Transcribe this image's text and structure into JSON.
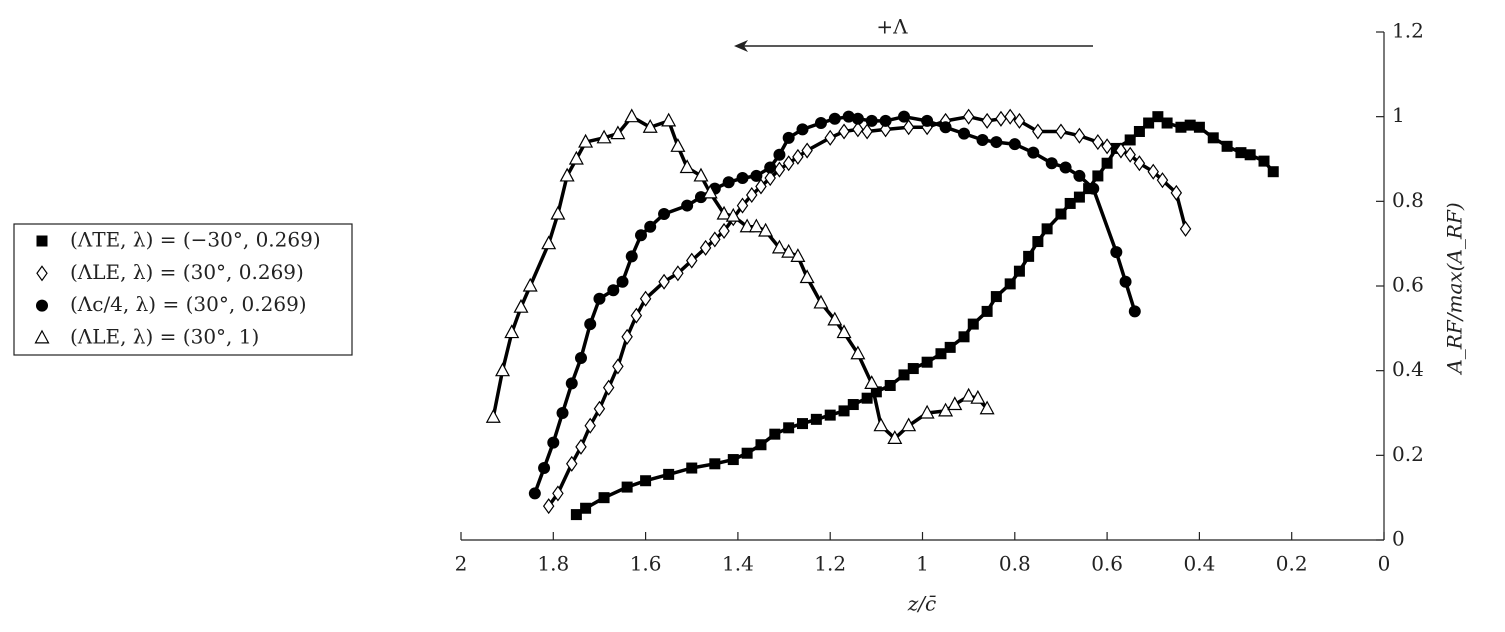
{
  "chart_data": {
    "type": "line",
    "x_label": "z/c̄",
    "y_label": "A_RF/max(A_RF)",
    "annotation": "+Λ",
    "xlim": [
      2,
      0
    ],
    "ylim": [
      0,
      1.2
    ],
    "xticks": [
      2,
      1.8,
      1.6,
      1.4,
      1.2,
      1,
      0.8,
      0.6,
      0.4,
      0.2,
      0
    ],
    "yticks": [
      0,
      0.2,
      0.4,
      0.6,
      0.8,
      1,
      1.2
    ],
    "legend": "left-outside",
    "series": [
      {
        "name": "(ΛTE, λ) = (−30°, 0.269)",
        "color": "#000000",
        "marker": "square",
        "x": [
          1.75,
          1.73,
          1.69,
          1.64,
          1.6,
          1.55,
          1.5,
          1.45,
          1.41,
          1.38,
          1.35,
          1.32,
          1.29,
          1.26,
          1.23,
          1.2,
          1.17,
          1.15,
          1.12,
          1.1,
          1.07,
          1.04,
          1.02,
          0.99,
          0.96,
          0.94,
          0.91,
          0.89,
          0.86,
          0.84,
          0.81,
          0.79,
          0.77,
          0.75,
          0.73,
          0.7,
          0.68,
          0.66,
          0.64,
          0.62,
          0.6,
          0.58,
          0.55,
          0.53,
          0.51,
          0.49,
          0.47,
          0.44,
          0.42,
          0.4,
          0.37,
          0.34,
          0.31,
          0.29,
          0.26,
          0.24
        ],
        "values": [
          0.06,
          0.075,
          0.1,
          0.125,
          0.14,
          0.155,
          0.17,
          0.18,
          0.19,
          0.205,
          0.225,
          0.25,
          0.265,
          0.275,
          0.285,
          0.295,
          0.305,
          0.32,
          0.335,
          0.35,
          0.365,
          0.39,
          0.405,
          0.42,
          0.44,
          0.455,
          0.48,
          0.51,
          0.54,
          0.575,
          0.605,
          0.635,
          0.67,
          0.705,
          0.735,
          0.77,
          0.795,
          0.81,
          0.83,
          0.86,
          0.89,
          0.925,
          0.945,
          0.965,
          0.985,
          1.0,
          0.985,
          0.975,
          0.98,
          0.975,
          0.95,
          0.93,
          0.915,
          0.91,
          0.895,
          0.87
        ]
      },
      {
        "name": "(ΛLE, λ) = (30°, 0.269)",
        "color": "#000000",
        "marker": "diamond",
        "x": [
          1.81,
          1.79,
          1.76,
          1.74,
          1.72,
          1.7,
          1.68,
          1.66,
          1.64,
          1.62,
          1.6,
          1.56,
          1.53,
          1.5,
          1.47,
          1.45,
          1.43,
          1.41,
          1.39,
          1.37,
          1.35,
          1.33,
          1.31,
          1.29,
          1.27,
          1.25,
          1.2,
          1.17,
          1.14,
          1.12,
          1.08,
          1.03,
          0.99,
          0.95,
          0.9,
          0.86,
          0.83,
          0.81,
          0.79,
          0.75,
          0.7,
          0.66,
          0.62,
          0.6,
          0.57,
          0.55,
          0.53,
          0.5,
          0.48,
          0.45,
          0.43
        ],
        "values": [
          0.08,
          0.11,
          0.18,
          0.22,
          0.27,
          0.31,
          0.36,
          0.41,
          0.48,
          0.53,
          0.57,
          0.61,
          0.63,
          0.66,
          0.69,
          0.71,
          0.73,
          0.76,
          0.79,
          0.815,
          0.835,
          0.855,
          0.875,
          0.89,
          0.905,
          0.92,
          0.95,
          0.965,
          0.97,
          0.965,
          0.97,
          0.975,
          0.975,
          0.99,
          1.0,
          0.99,
          0.995,
          1.0,
          0.99,
          0.965,
          0.965,
          0.955,
          0.94,
          0.93,
          0.92,
          0.91,
          0.89,
          0.87,
          0.85,
          0.82,
          0.735
        ]
      },
      {
        "name": "(Λc/4, λ) = (30°, 0.269)",
        "color": "#000000",
        "marker": "circle",
        "x": [
          1.84,
          1.82,
          1.8,
          1.78,
          1.76,
          1.74,
          1.72,
          1.7,
          1.67,
          1.65,
          1.63,
          1.61,
          1.59,
          1.56,
          1.51,
          1.48,
          1.45,
          1.42,
          1.39,
          1.36,
          1.33,
          1.31,
          1.29,
          1.26,
          1.22,
          1.19,
          1.16,
          1.14,
          1.11,
          1.08,
          1.04,
          0.99,
          0.95,
          0.91,
          0.87,
          0.84,
          0.8,
          0.76,
          0.72,
          0.69,
          0.66,
          0.63,
          0.58,
          0.56,
          0.54
        ],
        "values": [
          0.11,
          0.17,
          0.23,
          0.3,
          0.37,
          0.43,
          0.51,
          0.57,
          0.59,
          0.61,
          0.67,
          0.72,
          0.74,
          0.77,
          0.79,
          0.81,
          0.83,
          0.845,
          0.855,
          0.86,
          0.88,
          0.91,
          0.95,
          0.97,
          0.985,
          0.995,
          1.0,
          0.995,
          0.99,
          0.99,
          1.0,
          0.99,
          0.975,
          0.96,
          0.945,
          0.94,
          0.935,
          0.915,
          0.89,
          0.88,
          0.86,
          0.83,
          0.68,
          0.61,
          0.54
        ]
      },
      {
        "name": "(ΛLE, λ) = (30°, 1)",
        "color": "#000000",
        "marker": "triangle",
        "x": [
          1.93,
          1.91,
          1.89,
          1.87,
          1.85,
          1.81,
          1.79,
          1.77,
          1.75,
          1.73,
          1.69,
          1.66,
          1.63,
          1.59,
          1.55,
          1.53,
          1.51,
          1.48,
          1.46,
          1.43,
          1.41,
          1.38,
          1.36,
          1.34,
          1.31,
          1.29,
          1.27,
          1.25,
          1.22,
          1.19,
          1.17,
          1.14,
          1.11,
          1.09,
          1.06,
          1.03,
          0.99,
          0.95,
          0.93,
          0.9,
          0.88,
          0.86
        ],
        "values": [
          0.29,
          0.4,
          0.49,
          0.55,
          0.6,
          0.7,
          0.77,
          0.86,
          0.9,
          0.94,
          0.95,
          0.96,
          1.0,
          0.975,
          0.99,
          0.93,
          0.88,
          0.86,
          0.82,
          0.77,
          0.765,
          0.74,
          0.74,
          0.73,
          0.69,
          0.68,
          0.67,
          0.62,
          0.56,
          0.52,
          0.49,
          0.44,
          0.37,
          0.27,
          0.24,
          0.27,
          0.3,
          0.305,
          0.32,
          0.34,
          0.335,
          0.31
        ]
      }
    ]
  }
}
